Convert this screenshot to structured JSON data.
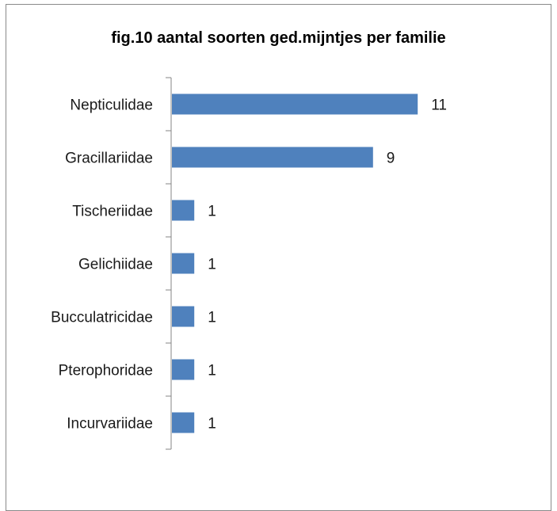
{
  "chart_data": {
    "type": "bar",
    "orientation": "horizontal",
    "title": "fig.10 aantal soorten ged.mijntjes per familie",
    "categories": [
      "Nepticulidae",
      "Gracillariidae",
      "Tischeriidae",
      "Gelichiidae",
      "Bucculatricidae",
      "Pterophoridae",
      "Incurvariidae"
    ],
    "values": [
      11,
      9,
      1,
      1,
      1,
      1,
      1
    ],
    "xlim": [
      0,
      11
    ],
    "grid": false,
    "legend": "none",
    "data_labels": true,
    "bar_color": "#4f81bd"
  }
}
